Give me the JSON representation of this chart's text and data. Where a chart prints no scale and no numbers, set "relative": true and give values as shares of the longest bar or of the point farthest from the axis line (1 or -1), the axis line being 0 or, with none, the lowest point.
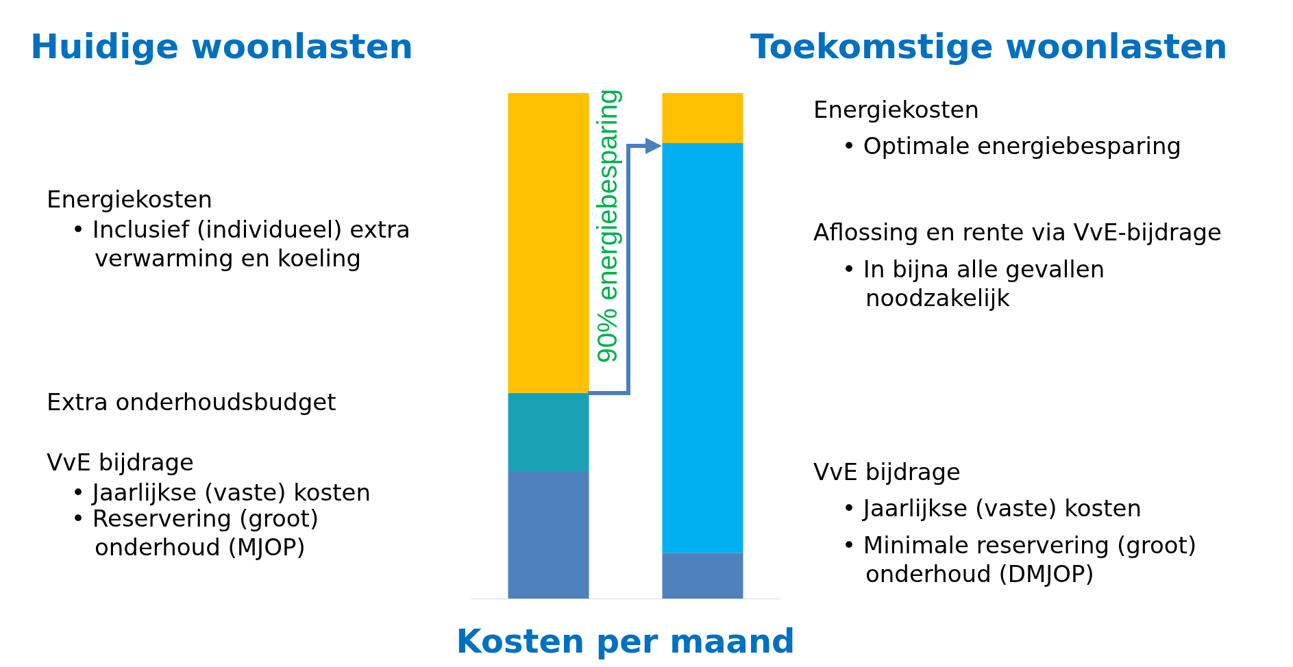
{
  "chart_data": {
    "type": "bar",
    "stacked": true,
    "relative": true,
    "xlabel": "Kosten per maand",
    "categories": [
      null,
      null
    ],
    "series": [
      {
        "color": "#4f81bd",
        "values": [
          0.252,
          0.09
        ]
      },
      {
        "color": "#1ba1b4",
        "values": [
          0.155,
          null
        ]
      },
      {
        "color": "#00b0f0",
        "values": [
          null,
          0.811
        ]
      },
      {
        "color": "#ffc000",
        "values": [
          0.593,
          0.099
        ]
      }
    ],
    "annotations": [
      "Huidige woonlasten",
      "Toekomstige woonlasten",
      "Energiekosten",
      "• Inclusief (individueel) extra verwarming en koeling",
      "Extra onderhoudsbudget",
      "VvE bijdrage",
      "• Jaarlijkse (vaste) kosten",
      "• Reservering (groot) onderhoud (MJOP)",
      "Energiekosten",
      "• Optimale energiebesparing",
      "Aflossing en rente via VvE-bijdrage",
      "• In bijna alle gevallen noodzakelijk",
      "VvE bijdrage",
      "• Jaarlijkse (vaste) kosten",
      "• Minimale reservering (groot) onderhoud (DMJOP)",
      "90% energiebesparing"
    ]
  }
}
